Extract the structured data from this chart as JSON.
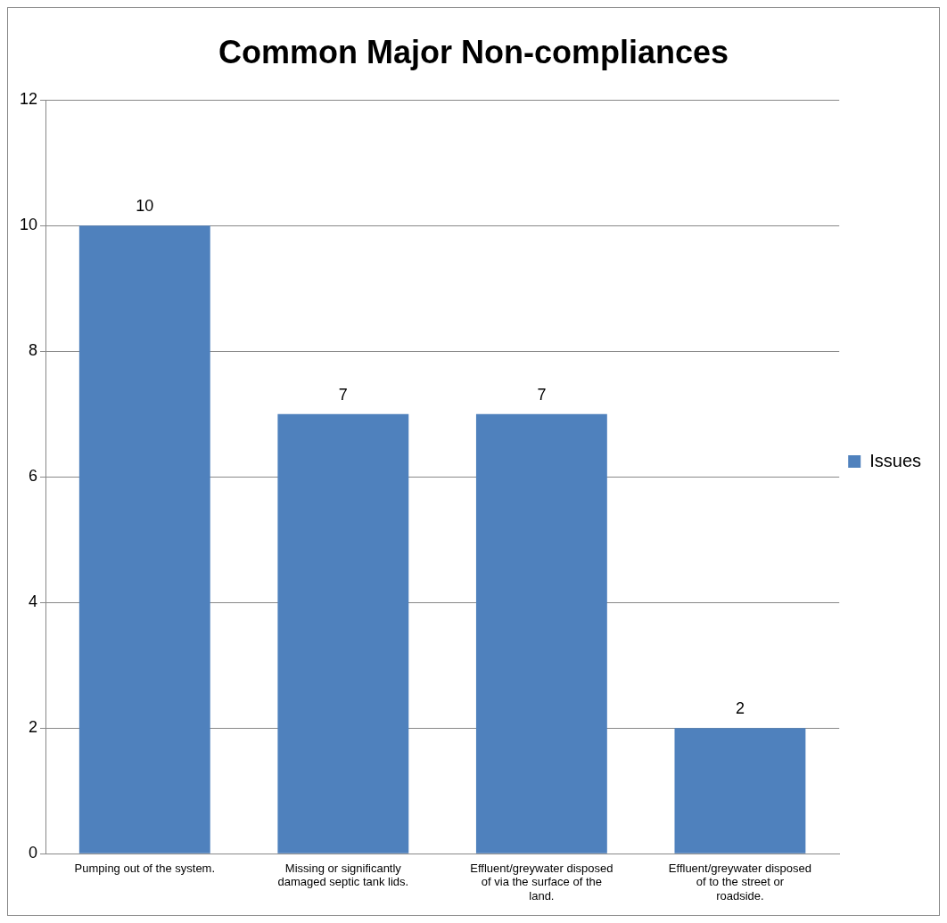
{
  "chart_data": {
    "type": "bar",
    "title": "Common Major Non-compliances",
    "categories": [
      "Pumping out of the system.",
      "Missing or significantly damaged septic tank lids.",
      "Effluent/greywater disposed of via the surface of the land.",
      "Effluent/greywater disposed of to the street or roadside."
    ],
    "series": [
      {
        "name": "Issues",
        "color": "#4f81bd",
        "values": [
          10,
          7,
          7,
          2
        ]
      }
    ],
    "ylim": [
      0,
      12
    ],
    "yticks": [
      0,
      2,
      4,
      6,
      8,
      10,
      12
    ],
    "grid": "y",
    "legend": "right",
    "data_labels": true
  }
}
